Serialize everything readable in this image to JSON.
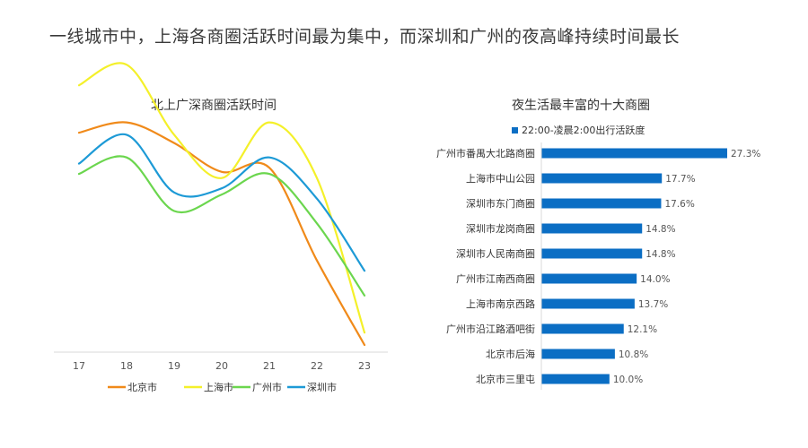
{
  "page": {
    "title": "一线城市中，上海各商圈活跃时间最为集中，而深圳和广州的夜高峰持续时间最长"
  },
  "colors": {
    "beijing": "#F08A1A",
    "shanghai": "#F4F02A",
    "guangzhou": "#6BD64E",
    "shenzhen": "#1D9AD6",
    "bar": "#0B6EC4",
    "axis": "#D9D9D9"
  },
  "chart_data": [
    {
      "type": "line",
      "title": "北上广深商圈活跃时间",
      "x": [
        "17",
        "18",
        "19",
        "20",
        "21",
        "22",
        "23"
      ],
      "xlabel": "",
      "ylabel": "",
      "legend_position": "bottom",
      "series": [
        {
          "name": "北京市",
          "color_key": "beijing",
          "values": [
            67,
            72,
            62,
            48,
            50,
            5,
            -36
          ]
        },
        {
          "name": "上海市",
          "color_key": "shanghai",
          "values": [
            90,
            100,
            66,
            45,
            72,
            45,
            -30
          ]
        },
        {
          "name": "广州市",
          "color_key": "guangzhou",
          "values": [
            47,
            55,
            29,
            37,
            47,
            23,
            -12
          ]
        },
        {
          "name": "深圳市",
          "color_key": "shenzhen",
          "values": [
            52,
            66,
            38,
            40,
            55,
            35,
            0
          ]
        }
      ]
    },
    {
      "type": "bar",
      "orientation": "horizontal",
      "title": "夜生活最丰富的十大商圈",
      "legend": "22:00-凌晨2:00出行活跃度",
      "legend_position": "top-left",
      "categories": [
        "广州市番禺大北路商圈",
        "上海市中山公园",
        "深圳市东门商圈",
        "深圳市龙岗商圈",
        "深圳市人民南商圈",
        "广州市江南西商圈",
        "上海市南京西路",
        "广州市沿江路酒吧街",
        "北京市后海",
        "北京市三里屯"
      ],
      "values": [
        27.3,
        17.7,
        17.6,
        14.8,
        14.8,
        14.0,
        13.7,
        12.1,
        10.8,
        10.0
      ],
      "value_labels": [
        "27.3%",
        "17.7%",
        "17.6%",
        "14.8%",
        "14.8%",
        "14.0%",
        "13.7%",
        "12.1%",
        "10.8%",
        "10.0%"
      ],
      "xlim": [
        0,
        28
      ]
    }
  ]
}
